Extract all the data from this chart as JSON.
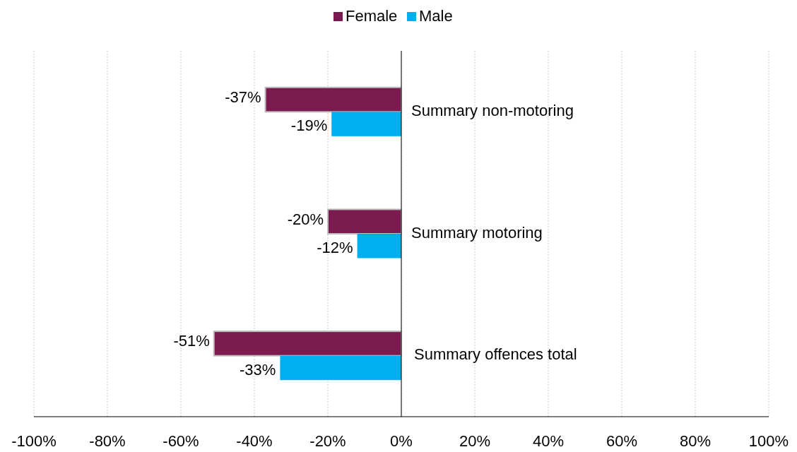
{
  "chart_data": {
    "type": "bar",
    "orientation": "horizontal",
    "categories": [
      "Summary non-motoring",
      "Summary motoring",
      "Summary offences total"
    ],
    "series": [
      {
        "name": "Female",
        "color": "#7b1a4e",
        "values": [
          -37,
          -20,
          -51
        ],
        "value_labels": [
          "-37%",
          "-20%",
          "-51%"
        ]
      },
      {
        "name": "Male",
        "color": "#00b0ee",
        "values": [
          -19,
          -12,
          -33
        ],
        "value_labels": [
          "-19%",
          "-12%",
          "-33%"
        ]
      }
    ],
    "xlim": [
      -100,
      100
    ],
    "xticks": [
      {
        "value": -100,
        "label": "-100%"
      },
      {
        "value": -80,
        "label": "-80%"
      },
      {
        "value": -60,
        "label": "-60%"
      },
      {
        "value": -40,
        "label": "-40%"
      },
      {
        "value": -20,
        "label": "-20%"
      },
      {
        "value": 0,
        "label": "0%"
      },
      {
        "value": 20,
        "label": "20%"
      },
      {
        "value": 40,
        "label": "40%"
      },
      {
        "value": 60,
        "label": "60%"
      },
      {
        "value": 80,
        "label": "80%"
      },
      {
        "value": 100,
        "label": "100%"
      }
    ],
    "grid": "x",
    "legend": "top"
  }
}
